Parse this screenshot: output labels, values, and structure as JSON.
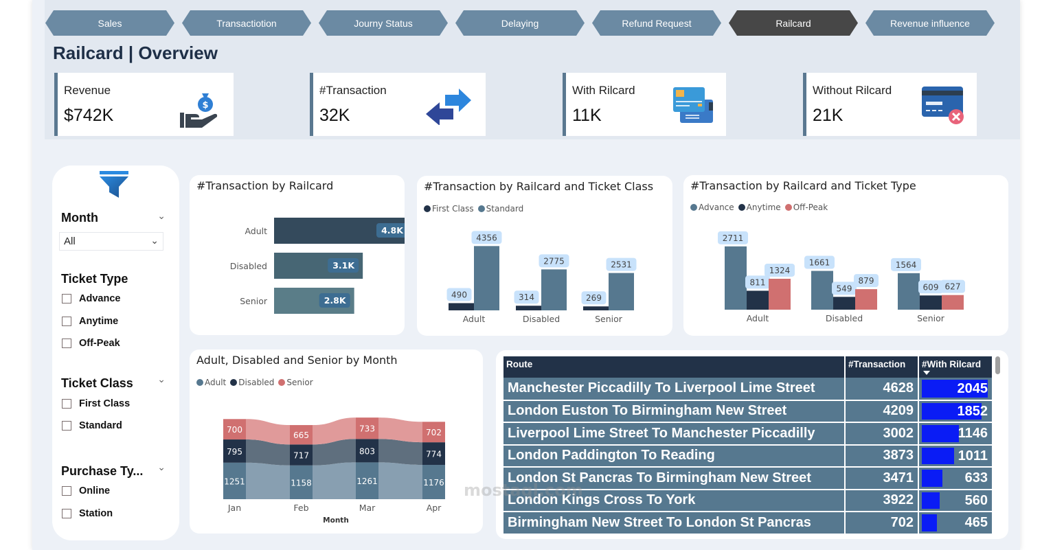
{
  "nav": {
    "tabs": [
      {
        "label": "Sales",
        "active": false
      },
      {
        "label": "Transactiotion",
        "active": false
      },
      {
        "label": "Journy Status",
        "active": false
      },
      {
        "label": "Delaying",
        "active": false
      },
      {
        "label": "Refund Request",
        "active": false
      },
      {
        "label": "Railcard",
        "active": true
      },
      {
        "label": "Revenue influence",
        "active": false
      }
    ]
  },
  "page_title": "Railcard | Overview",
  "kpis": [
    {
      "label": "Revenue",
      "value": "$742K",
      "icon": "money-bag-hand-icon"
    },
    {
      "label": "#Transaction",
      "value": "32K",
      "icon": "exchange-arrows-icon"
    },
    {
      "label": "With Rilcard",
      "value": "11K",
      "icon": "credit-cards-icon"
    },
    {
      "label": "Without Rilcard",
      "value": "21K",
      "icon": "card-cancel-icon"
    }
  ],
  "filters": {
    "icon": "funnel-icon",
    "month": {
      "label": "Month",
      "selected": "All"
    },
    "ticket_type": {
      "label": "Ticket Type",
      "options": [
        "Advance",
        "Anytime",
        "Off-Peak"
      ]
    },
    "ticket_class": {
      "label": "Ticket Class",
      "options": [
        "First Class",
        "Standard"
      ]
    },
    "purchase_type": {
      "label": "Purchase Ty...",
      "options": [
        "Online",
        "Station"
      ]
    }
  },
  "chart_data": [
    {
      "type": "bar",
      "orientation": "horizontal",
      "title": "#Transaction by Railcard",
      "categories": [
        "Adult",
        "Disabled",
        "Senior"
      ],
      "values": [
        4800,
        3100,
        2800
      ],
      "labels": [
        "4.8K",
        "3.1K",
        "2.8K"
      ],
      "colors": [
        "#344a5c",
        "#476674",
        "#5a7d88"
      ]
    },
    {
      "type": "bar",
      "title": "#Transaction by Railcard and Ticket Class",
      "categories": [
        "Adult",
        "Disabled",
        "Senior"
      ],
      "legend_position": "top-left",
      "series": [
        {
          "name": "First Class",
          "values": [
            490,
            314,
            269
          ],
          "color": "#223248"
        },
        {
          "name": "Standard",
          "values": [
            4356,
            2775,
            2531
          ],
          "color": "#56788f"
        }
      ]
    },
    {
      "type": "bar",
      "title": "#Transaction by Railcard and Ticket Type",
      "categories": [
        "Adult",
        "Disabled",
        "Senior"
      ],
      "legend_position": "top-left",
      "series": [
        {
          "name": "Advance",
          "values": [
            2711,
            1661,
            1564
          ],
          "color": "#56788f"
        },
        {
          "name": "Anytime",
          "values": [
            811,
            549,
            609
          ],
          "color": "#223248"
        },
        {
          "name": "Off-Peak",
          "values": [
            1324,
            879,
            627
          ],
          "color": "#d07070"
        }
      ]
    },
    {
      "type": "bar",
      "stacked": true,
      "ribbon": true,
      "title": "Adult, Disabled and Senior by Month",
      "xlabel": "Month",
      "categories": [
        "Jan",
        "Feb",
        "Mar",
        "Apr"
      ],
      "legend_position": "top-left",
      "series": [
        {
          "name": "Adult",
          "values": [
            1251,
            1158,
            1261,
            1176
          ],
          "color": "#56788f"
        },
        {
          "name": "Disabled",
          "values": [
            795,
            717,
            803,
            774
          ],
          "color": "#223248"
        },
        {
          "name": "Senior",
          "values": [
            700,
            665,
            733,
            702
          ],
          "color": "#d07070"
        }
      ]
    }
  ],
  "table": {
    "columns": [
      "Route",
      "#Transaction",
      "#With Rilcard"
    ],
    "sorted_column": "#With Rilcard",
    "rows": [
      {
        "route": "Manchester Piccadilly To Liverpool Lime Street",
        "transactions": 4628,
        "with_railcard": 2045
      },
      {
        "route": "London Euston To Birmingham New Street",
        "transactions": 4209,
        "with_railcard": 1852
      },
      {
        "route": "Liverpool Lime Street To Manchester Piccadilly",
        "transactions": 3002,
        "with_railcard": 1146
      },
      {
        "route": "London Paddington To Reading",
        "transactions": 3873,
        "with_railcard": 1011
      },
      {
        "route": "London St Pancras To Birmingham New Street",
        "transactions": 3471,
        "with_railcard": 633
      },
      {
        "route": "London Kings Cross To York",
        "transactions": 3922,
        "with_railcard": 560
      },
      {
        "route": "Birmingham New Street To London St Pancras",
        "transactions": 702,
        "with_railcard": 465
      }
    ],
    "bar_color": "#0a1cf5"
  },
  "watermark": "mostaql.com"
}
